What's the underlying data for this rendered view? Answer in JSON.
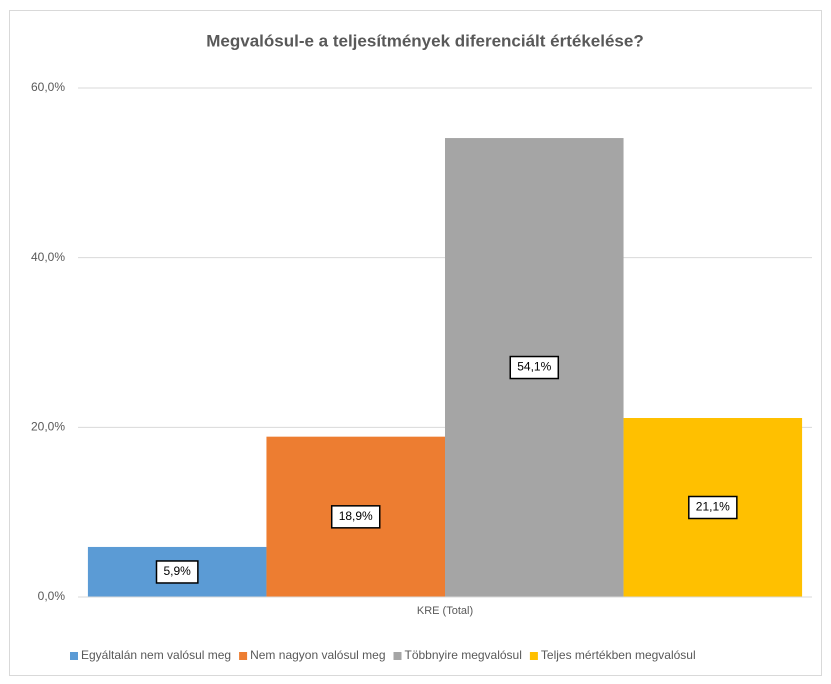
{
  "chart_data": {
    "type": "bar",
    "title": "Megvalósul-e a teljesítmények diferenciált értékelése?",
    "categories": [
      "KRE (Total)"
    ],
    "series": [
      {
        "name": "Egyáltalán nem valósul meg",
        "color": "#5b9bd5",
        "values": [
          5.9
        ],
        "value_labels": [
          "5,9%"
        ]
      },
      {
        "name": "Nem nagyon valósul meg",
        "color": "#ed7d31",
        "values": [
          18.9
        ],
        "value_labels": [
          "18,9%"
        ]
      },
      {
        "name": "Többnyire megvalósul",
        "color": "#a5a5a5",
        "values": [
          54.1
        ],
        "value_labels": [
          "54,1%"
        ]
      },
      {
        "name": "Teljes mértékben megvalósul",
        "color": "#ffc000",
        "values": [
          21.1
        ],
        "value_labels": [
          "21,1%"
        ]
      }
    ],
    "ylim": [
      0,
      60
    ],
    "yticks": [
      {
        "value": 0,
        "label": "0,0%"
      },
      {
        "value": 20,
        "label": "20,0%"
      },
      {
        "value": 40,
        "label": "40,0%"
      },
      {
        "value": 60,
        "label": "60,0%"
      }
    ],
    "grid": true,
    "legend": "bottom"
  }
}
